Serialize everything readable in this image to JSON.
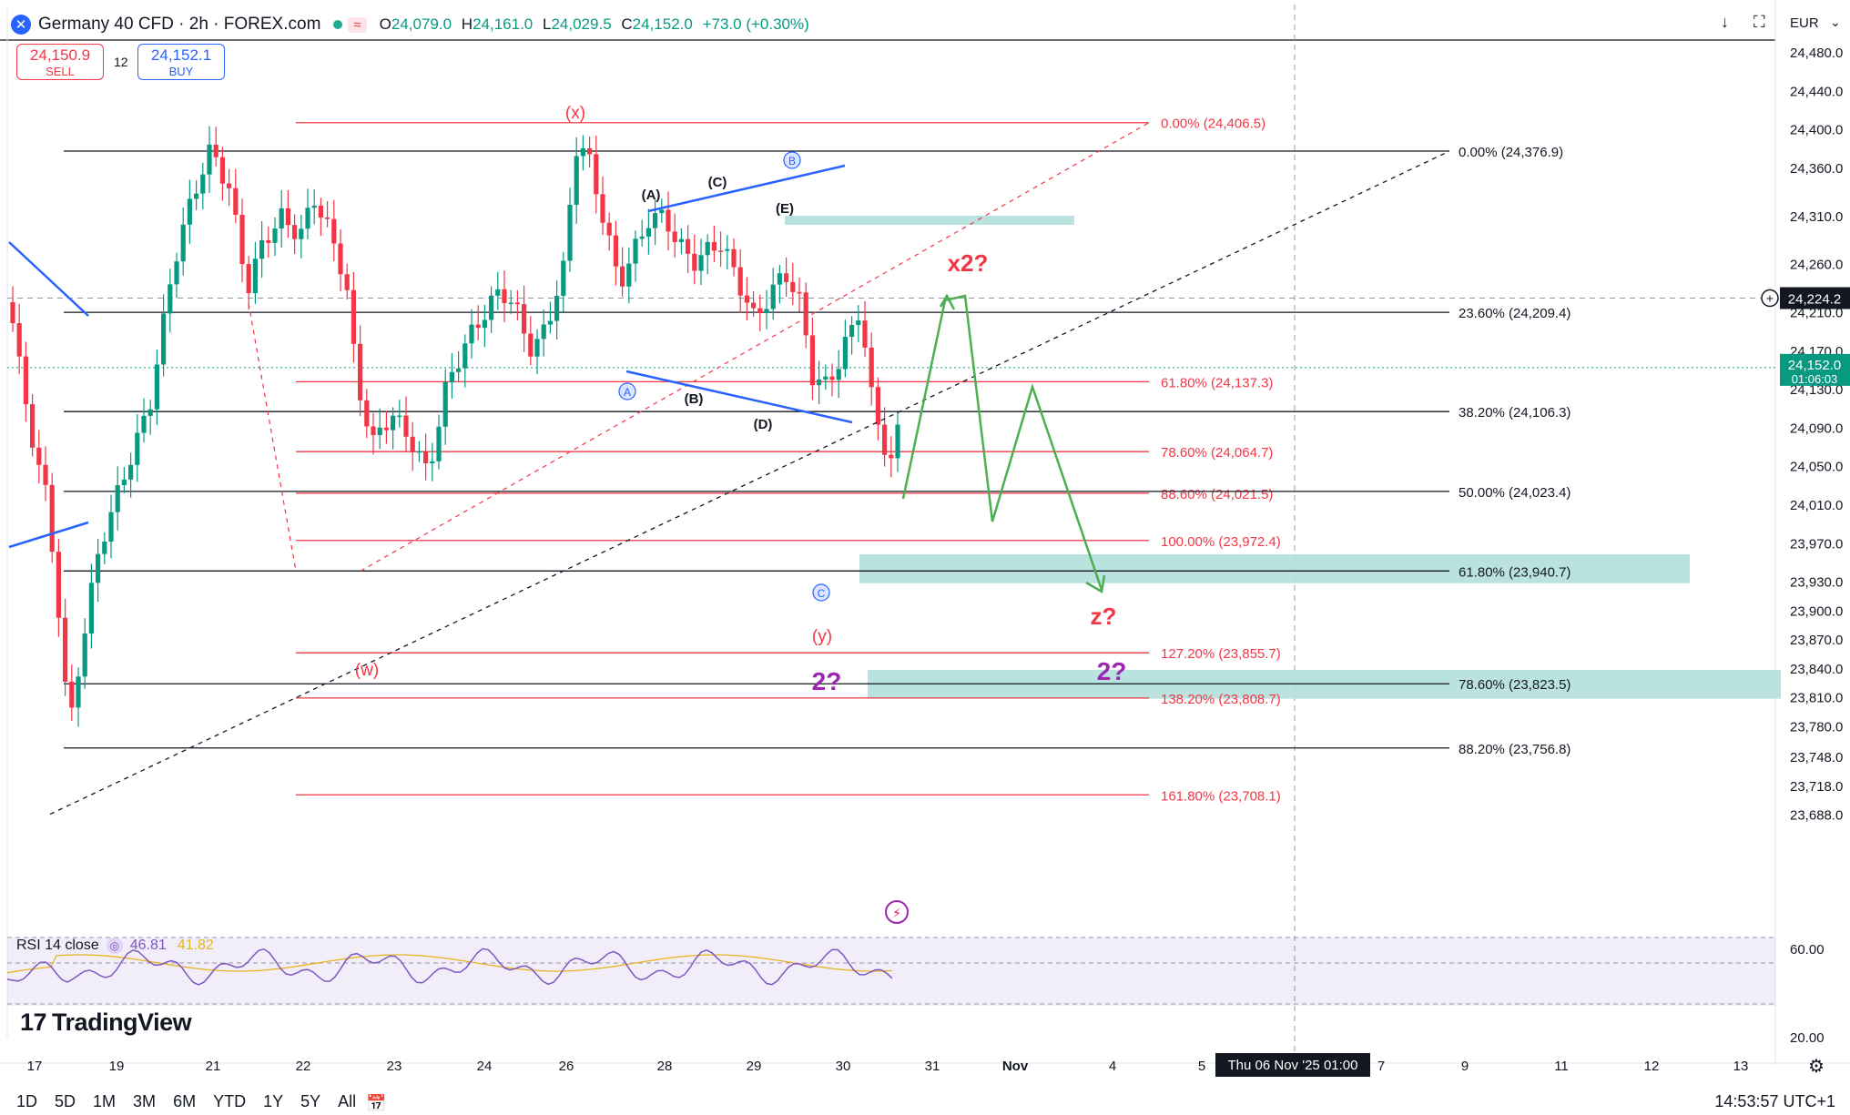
{
  "header": {
    "title": "Germany 40 CFD · 2h · FOREX.com",
    "ohlc": [
      {
        "label": "O",
        "value": "24,079.0"
      },
      {
        "label": "H",
        "value": "24,161.0"
      },
      {
        "label": "L",
        "value": "24,029.5"
      },
      {
        "label": "C",
        "value": "24,152.0"
      }
    ],
    "change": "+73.0 (+0.30%)",
    "currency": "EUR",
    "sell_price": "24,150.9",
    "sell_label": "SELL",
    "buy_price": "24,152.1",
    "buy_label": "BUY",
    "spread": "12"
  },
  "colors": {
    "up": "#089981",
    "down": "#f23645",
    "fib_red": "#f23645",
    "fib_black": "#131722",
    "elliott_blue": "#2962ff",
    "projection_green": "#4caf50",
    "zone_teal": "#b2dfdb",
    "wave_red": "#f23645",
    "wave_purple": "#9c27b0",
    "rsi": "#7e57c2",
    "rsi_ma": "#e6b422"
  },
  "chart_data": {
    "type": "candlestick",
    "y_axis_ticks": [
      "24,480.0",
      "24,440.0",
      "24,400.0",
      "24,360.0",
      "24,310.0",
      "24,260.0",
      "24,210.0",
      "24,170.0",
      "24,130.0",
      "24,090.0",
      "24,050.0",
      "24,010.0",
      "23,970.0",
      "23,930.0",
      "23,900.0",
      "23,870.0",
      "23,840.0",
      "23,810.0",
      "23,780.0",
      "23,748.0",
      "23,718.0",
      "23,688.0"
    ],
    "ylim": [
      23680,
      24500
    ],
    "x_axis_ticks": [
      "17",
      "19",
      "21",
      "22",
      "23",
      "24",
      "26",
      "28",
      "29",
      "30",
      "31",
      "Nov",
      "4",
      "5",
      "7",
      "9",
      "11",
      "12",
      "13"
    ],
    "crosshair_label": "Thu 06 Nov '25   01:00",
    "price_labels": {
      "current": "24,152.0",
      "countdown": "01:06:03",
      "crosshair": "24,224.2"
    },
    "fib_red": [
      {
        "label": "0.00% (24,406.5)",
        "price": 24406.5
      },
      {
        "label": "61.80% (24,137.3)",
        "price": 24137.3
      },
      {
        "label": "78.60% (24,064.7)",
        "price": 24064.7
      },
      {
        "label": "88.60% (24,021.5)",
        "price": 24021.5
      },
      {
        "label": "100.00% (23,972.4)",
        "price": 23972.4
      },
      {
        "label": "127.20% (23,855.7)",
        "price": 23855.7
      },
      {
        "label": "138.20% (23,808.7)",
        "price": 23808.7
      },
      {
        "label": "161.80% (23,708.1)",
        "price": 23708.1
      }
    ],
    "fib_black": [
      {
        "label": "0.00% (24,376.9)",
        "price": 24376.9
      },
      {
        "label": "23.60% (24,209.4)",
        "price": 24209.4
      },
      {
        "label": "38.20% (24,106.3)",
        "price": 24106.3
      },
      {
        "label": "50.00% (24,023.4)",
        "price": 24023.4
      },
      {
        "label": "61.80% (23,940.7)",
        "price": 23940.7
      },
      {
        "label": "78.60% (23,823.5)",
        "price": 23823.5
      },
      {
        "label": "88.20% (23,756.8)",
        "price": 23756.8
      }
    ],
    "wave_labels": {
      "x": "(x)",
      "w": "(w)",
      "y": "(y)",
      "A": "(A)",
      "B": "(B)",
      "C": "(C)",
      "D": "(D)",
      "E": "(E)",
      "circ_a": "A",
      "circ_b": "B",
      "circ_c": "C",
      "x2": "x2?",
      "z": "z?",
      "two": "2?"
    },
    "rsi": {
      "label": "RSI 14 close",
      "value": "46.81",
      "ma": "41.82",
      "ticks": [
        "60.00",
        "20.00"
      ]
    }
  },
  "toolbar": {
    "timeframes": [
      "1D",
      "5D",
      "1M",
      "3M",
      "6M",
      "YTD",
      "1Y",
      "5Y",
      "All"
    ],
    "clock": "14:53:57 UTC+1",
    "brand": "TradingView"
  }
}
